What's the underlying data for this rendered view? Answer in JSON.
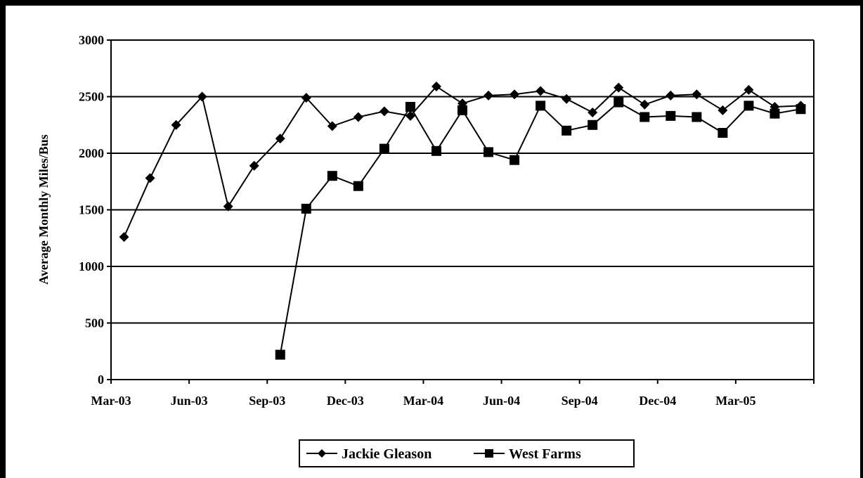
{
  "chart_data": {
    "type": "line",
    "title": "",
    "xlabel": "",
    "ylabel": "Average Monthly Miles/Bus",
    "ylim": [
      0,
      3000
    ],
    "yticks": [
      "0",
      "500",
      "1000",
      "1500",
      "2000",
      "2500",
      "3000"
    ],
    "xticks": [
      "Mar-03",
      "Jun-03",
      "Sep-03",
      "Dec-03",
      "Mar-04",
      "Jun-04",
      "Sep-04",
      "Dec-04",
      "Mar-05"
    ],
    "x": [
      "Apr-03",
      "May-03",
      "Jun-03",
      "Jul-03",
      "Aug-03",
      "Sep-03",
      "Oct-03",
      "Nov-03",
      "Dec-03",
      "Jan-04",
      "Feb-04",
      "Mar-04",
      "Apr-04",
      "May-04",
      "Jun-04",
      "Jul-04",
      "Aug-04",
      "Sep-04",
      "Oct-04",
      "Nov-04",
      "Dec-04",
      "Jan-05",
      "Feb-05",
      "Mar-05",
      "Apr-05",
      "May-05",
      "Jun-05"
    ],
    "grid": true,
    "legend_position": "bottom",
    "series": [
      {
        "name": "Jackie Gleason",
        "marker": "diamond",
        "values": [
          1260,
          1780,
          2250,
          2500,
          1530,
          1890,
          2130,
          2490,
          2240,
          2320,
          2370,
          2330,
          2590,
          2440,
          2510,
          2520,
          2550,
          2480,
          2360,
          2580,
          2430,
          2510,
          2520,
          2380,
          2560,
          2410,
          2420
        ]
      },
      {
        "name": "West Farms",
        "marker": "square",
        "values": [
          null,
          null,
          null,
          null,
          null,
          null,
          220,
          1510,
          1800,
          1710,
          2040,
          2410,
          2020,
          2380,
          2010,
          1940,
          2420,
          2200,
          2250,
          2450,
          2320,
          2330,
          2320,
          2180,
          2420,
          2350,
          2390
        ]
      }
    ]
  }
}
